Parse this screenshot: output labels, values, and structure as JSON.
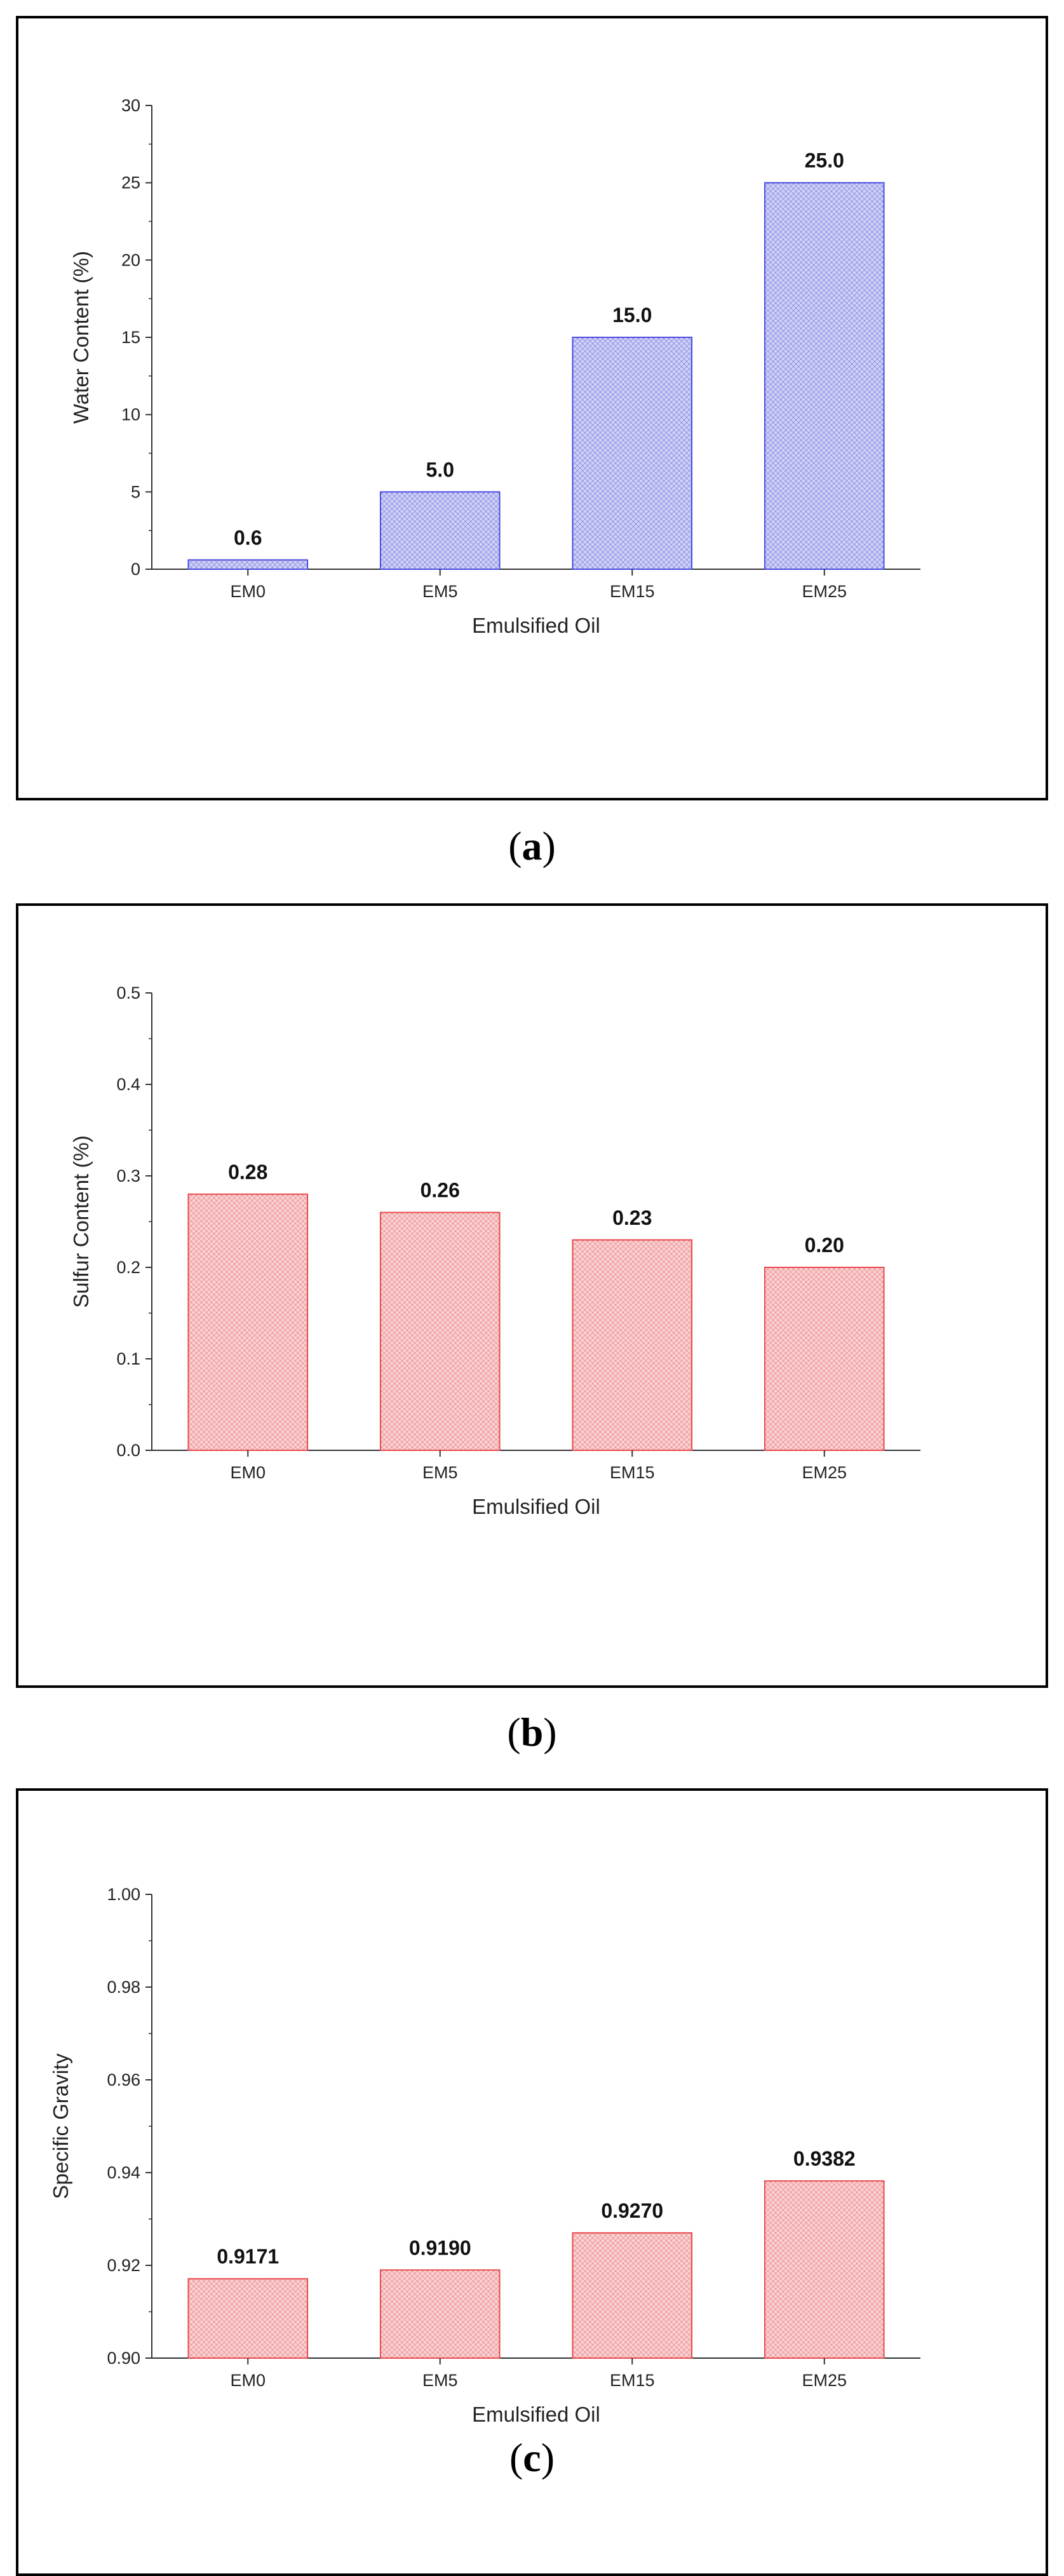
{
  "chart_data": [
    {
      "type": "bar",
      "panel_label": "a",
      "categories": [
        "EM0",
        "EM5",
        "EM15",
        "EM25"
      ],
      "values": [
        0.6,
        5.0,
        15.0,
        25.0
      ],
      "data_labels": [
        "0.6",
        "5.0",
        "15.0",
        "25.0"
      ],
      "xlabel": "Emulsified Oil",
      "ylabel": "Water Content (%)",
      "ylim": [
        0,
        30
      ],
      "yticks": [
        "0",
        "5",
        "10",
        "15",
        "20",
        "25",
        "30"
      ],
      "bar_color": "#4a4ae0",
      "bar_fill": "#cfd2f3",
      "grid": false
    },
    {
      "type": "bar",
      "panel_label": "b",
      "categories": [
        "EM0",
        "EM5",
        "EM15",
        "EM25"
      ],
      "values": [
        0.28,
        0.26,
        0.23,
        0.2
      ],
      "data_labels": [
        "0.28",
        "0.26",
        "0.23",
        "0.20"
      ],
      "xlabel": "Emulsified Oil",
      "ylabel": "Sulfur Content (%)",
      "ylim": [
        0,
        0.5
      ],
      "yticks": [
        "0.0",
        "0.1",
        "0.2",
        "0.3",
        "0.4",
        "0.5"
      ],
      "bar_color": "#e8484d",
      "bar_fill": "#f8d3d4",
      "grid": false
    },
    {
      "type": "bar",
      "panel_label": "c",
      "categories": [
        "EM0",
        "EM5",
        "EM15",
        "EM25"
      ],
      "values": [
        0.9171,
        0.919,
        0.927,
        0.9382
      ],
      "data_labels": [
        "0.9171",
        "0.9190",
        "0.9270",
        "0.9382"
      ],
      "xlabel": "Emulsified Oil",
      "ylabel": "Specific Gravity",
      "ylim": [
        0.9,
        1.0
      ],
      "yticks": [
        "0.90",
        "0.92",
        "0.94",
        "0.96",
        "0.98",
        "1.00"
      ],
      "bar_color": "#e8484d",
      "bar_fill": "#f8d3d4",
      "grid": false
    }
  ]
}
